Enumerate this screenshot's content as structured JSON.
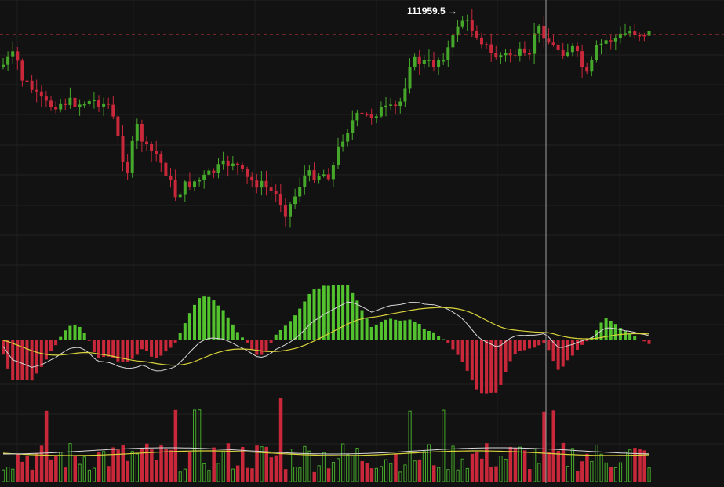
{
  "chart_data": {
    "type": "candlestick",
    "panels": [
      "price",
      "macd",
      "volume"
    ],
    "price_marker": {
      "label": "111959.5",
      "arrow": "→",
      "line_style": "dashed",
      "color": "#c8383c"
    },
    "up_color": "#45a82a",
    "down_color": "#c8283a",
    "histogram_up_color": "#52c22e",
    "histogram_down_color": "#c8283a",
    "macd_line_color": "#d8d8d8",
    "signal_line_color": "#d9d23a",
    "volume_ma_colors": [
      "#d9d23a",
      "#d8d8d8"
    ],
    "crosshair": {
      "visible": true,
      "color": "#a0a0a0"
    },
    "grid": true,
    "background": "#121212",
    "candles_count": 136
  }
}
